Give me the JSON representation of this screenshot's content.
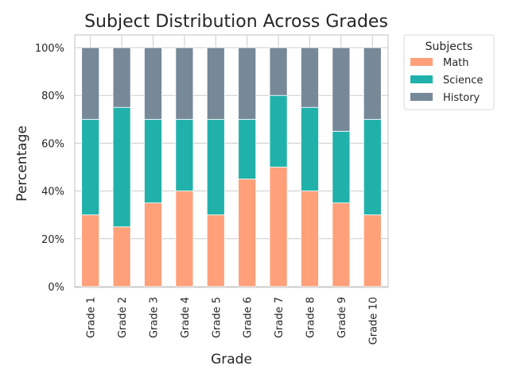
{
  "chart_data": {
    "type": "bar",
    "stacked": true,
    "title": "Subject Distribution Across Grades",
    "xlabel": "Grade",
    "ylabel": "Percentage",
    "ylim": [
      0,
      100
    ],
    "y_tick_values": [
      0,
      20,
      40,
      60,
      80,
      100
    ],
    "y_tick_labels": [
      "0%",
      "20%",
      "40%",
      "60%",
      "80%",
      "100%"
    ],
    "grid": true,
    "legend": {
      "title": "Subjects",
      "position": "outside-top-right"
    },
    "categories": [
      "Grade 1",
      "Grade 2",
      "Grade 3",
      "Grade 4",
      "Grade 5",
      "Grade 6",
      "Grade 7",
      "Grade 8",
      "Grade 9",
      "Grade 10"
    ],
    "series": [
      {
        "name": "Math",
        "color": "#FFA07A",
        "values": [
          30,
          25,
          35,
          40,
          30,
          45,
          50,
          40,
          35,
          30
        ]
      },
      {
        "name": "Science",
        "color": "#20B2AA",
        "values": [
          40,
          50,
          35,
          30,
          40,
          25,
          30,
          35,
          30,
          40
        ]
      },
      {
        "name": "History",
        "color": "#778899",
        "values": [
          30,
          25,
          30,
          30,
          30,
          30,
          20,
          25,
          35,
          30
        ]
      }
    ]
  }
}
